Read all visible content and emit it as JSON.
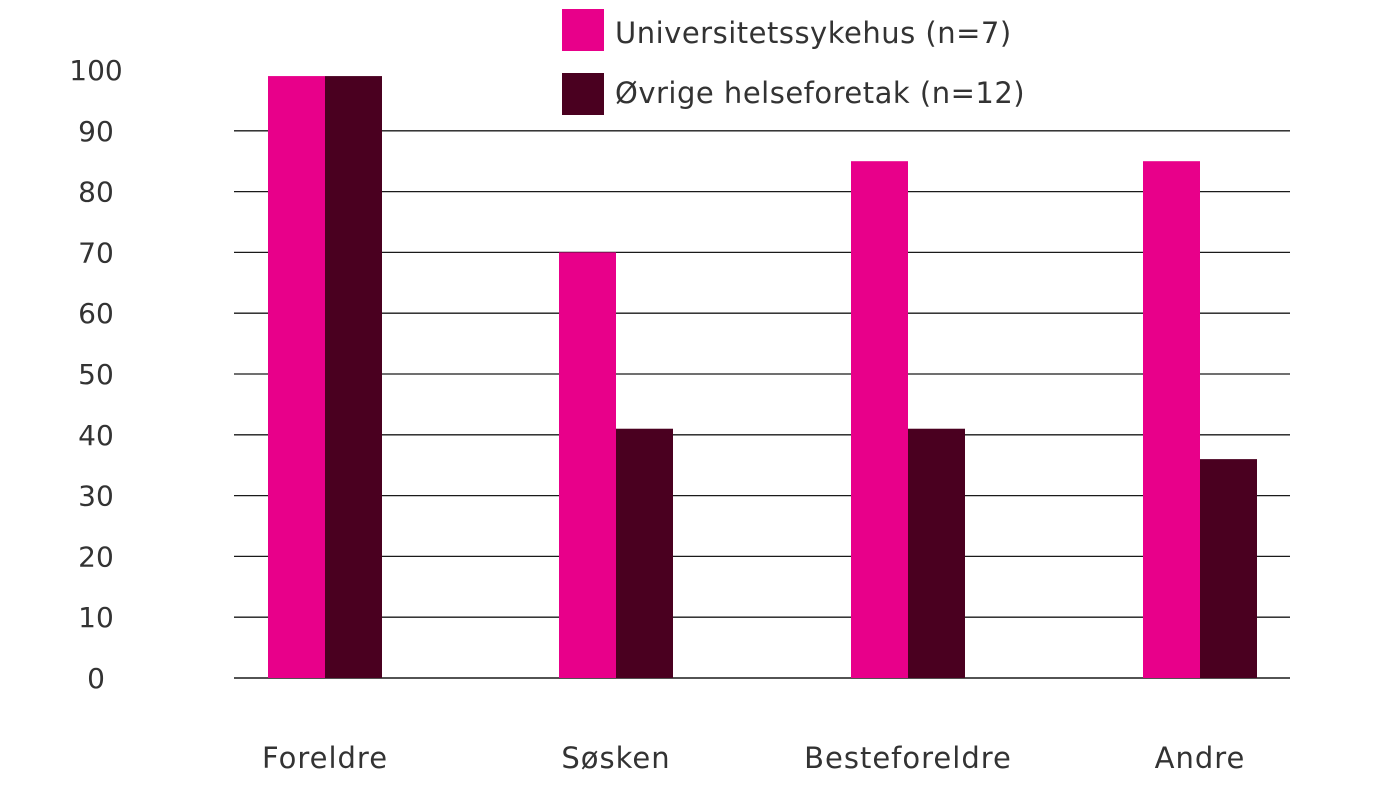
{
  "chart_data": {
    "type": "bar",
    "categories": [
      "Foreldre",
      "Søsken",
      "Besteforeldre",
      "Andre"
    ],
    "series": [
      {
        "name": "Universitetssykehus (n=7)",
        "color": "#e8008a",
        "values": [
          99,
          70,
          85,
          85
        ]
      },
      {
        "name": "Øvrige helseforetak (n=12)",
        "color": "#4a0020",
        "values": [
          99,
          41,
          41,
          36
        ]
      }
    ],
    "yticks": [
      "0",
      "10",
      "20",
      "30",
      "40",
      "50",
      "60",
      "70",
      "80",
      "90",
      "100"
    ],
    "ylim": [
      0,
      100
    ],
    "gridlines_at": [
      10,
      20,
      30,
      40,
      50,
      60,
      70,
      80,
      90
    ],
    "grid": true,
    "legend_position": "top-center",
    "title": "",
    "xlabel": "",
    "ylabel": ""
  }
}
